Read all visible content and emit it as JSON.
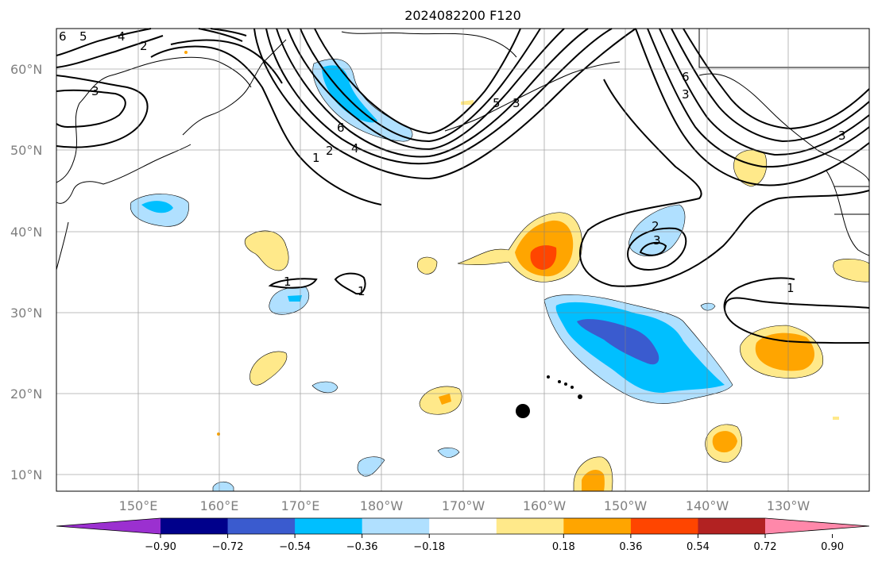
{
  "title": "2024082200 F120",
  "latitude_labels": [
    "60°N",
    "50°N",
    "40°N",
    "30°N",
    "20°N",
    "10°N"
  ],
  "longitude_labels": [
    "150°E",
    "160°E",
    "170°E",
    "180°W",
    "170°W",
    "160°W",
    "150°W",
    "140°W",
    "130°W"
  ],
  "colorbar": {
    "ticks": [
      "−0.90",
      "−0.72",
      "−0.54",
      "−0.36",
      "−0.18",
      "0.18",
      "0.36",
      "0.54",
      "0.72",
      "0.90"
    ],
    "colors": [
      "#9b30d0",
      "#00008b",
      "#3a5bcf",
      "#00bfff",
      "#b0e0ff",
      "#ffffff",
      "#ffe98a",
      "#ffa500",
      "#ff4500",
      "#b22222",
      "#ff88aa"
    ]
  },
  "contour_labels": [
    "1",
    "2",
    "3",
    "4",
    "5",
    "6"
  ],
  "marker": {
    "label": "circle-marker"
  }
}
